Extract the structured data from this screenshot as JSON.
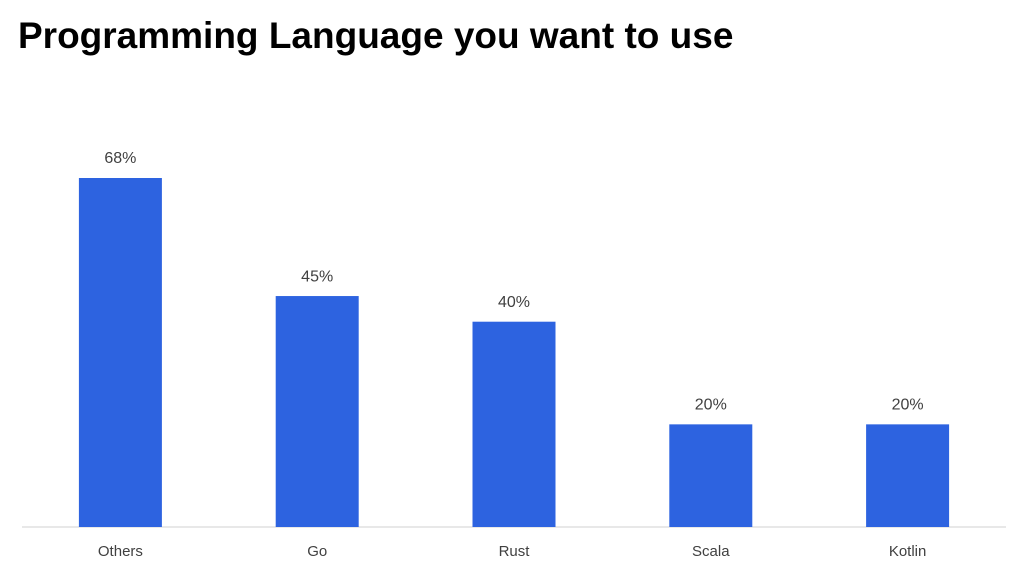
{
  "chart_data": {
    "type": "bar",
    "title": "Programming Language you want to use",
    "categories": [
      "Others",
      "Go",
      "Rust",
      "Scala",
      "Kotlin"
    ],
    "values": [
      68,
      45,
      40,
      20,
      20
    ],
    "value_labels": [
      "68%",
      "45%",
      "40%",
      "20%",
      "20%"
    ],
    "color": "#2d63e0"
  }
}
